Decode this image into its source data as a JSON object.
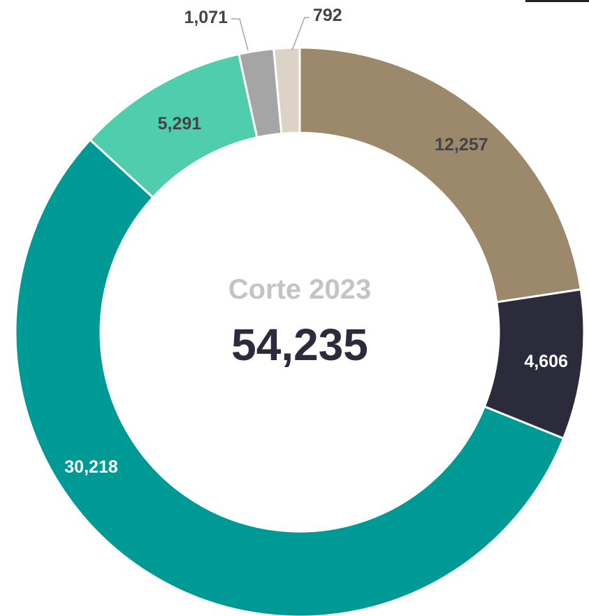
{
  "chart_data": {
    "type": "pie",
    "donut": true,
    "title": "Corte 2023",
    "total": "54,235",
    "legend": "none",
    "slices": [
      {
        "label": "12,257",
        "value": 12257,
        "color": "#9c886b",
        "label_color": "#444444"
      },
      {
        "label": "4,606",
        "value": 4606,
        "color": "#2b2b3b",
        "label_color": "#ffffff"
      },
      {
        "label": "30,218",
        "value": 30218,
        "color": "#009a96",
        "label_color": "#ffffff"
      },
      {
        "label": "5,291",
        "value": 5291,
        "color": "#4fcdad",
        "label_color": "#444444"
      },
      {
        "label": "1,071",
        "value": 1071,
        "color": "#a5a5a5",
        "label_color": "#444444"
      },
      {
        "label": "792",
        "value": 792,
        "color": "#dcd2c6",
        "label_color": "#444444"
      }
    ],
    "title_color": "#c4c4c4",
    "total_color": "#2b2b3b"
  }
}
